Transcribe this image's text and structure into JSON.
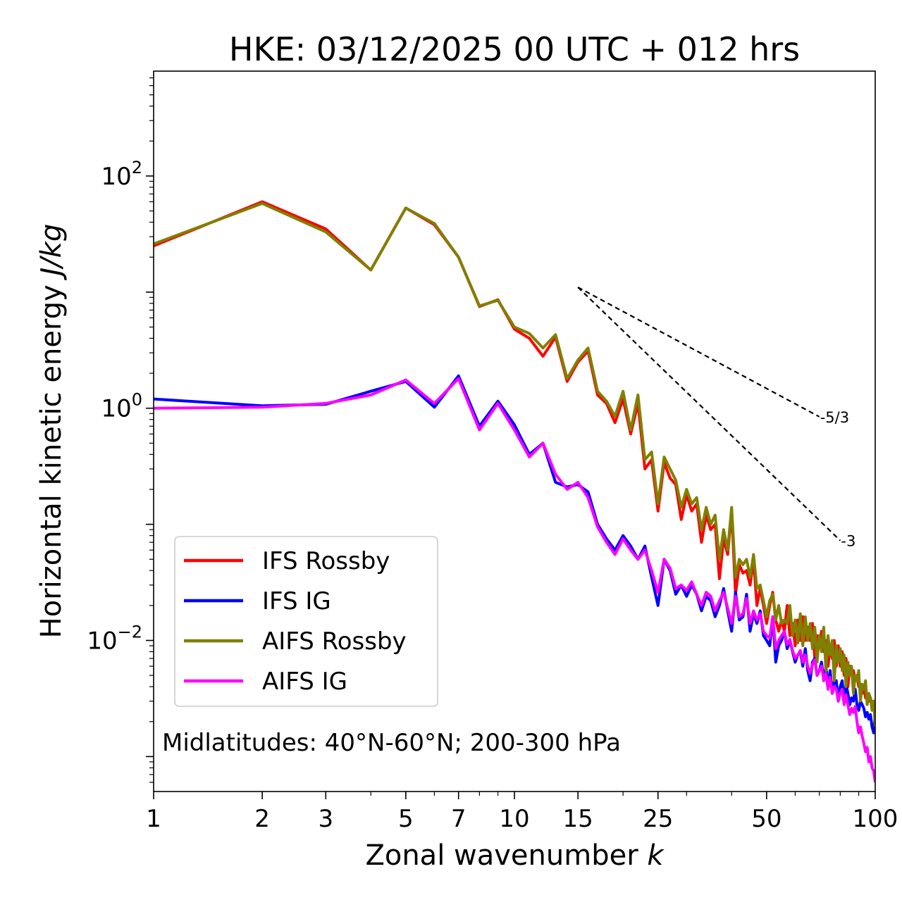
{
  "chart_data": {
    "type": "line",
    "title": "HKE: 03/12/2025 00 UTC + 012 hrs",
    "xlabel": "Zonal wavenumber",
    "xlabel_var": "k",
    "ylabel": "Horizontal kinetic energy",
    "ylabel_unit": "J/kg",
    "xscale": "log",
    "yscale": "log",
    "xlim": [
      1,
      100
    ],
    "ylim": [
      0.0005,
      800
    ],
    "x_ticks": [
      1,
      2,
      3,
      5,
      7,
      10,
      15,
      25,
      50,
      100
    ],
    "x_tick_labels": [
      "1",
      "2",
      "3",
      "5",
      "7",
      "10",
      "15",
      "25",
      "50",
      "100"
    ],
    "y_ticks": [
      0.01,
      1,
      100
    ],
    "y_tick_mantissa": [
      "10",
      "10",
      "10"
    ],
    "y_tick_exponents": [
      "−2",
      "0",
      "2"
    ],
    "annotation": "Midlatitudes: 40°N-60°N; 200-300 hPa",
    "legend_position": "lower-left",
    "reference_lines": [
      {
        "label": "-5/3",
        "slope": -1.6667,
        "x_start": 15,
        "y_start": 11,
        "x_end": 70
      },
      {
        "label": "-3",
        "slope": -3,
        "x_start": 15,
        "y_start": 11,
        "x_end": 80
      }
    ],
    "x": [
      1,
      2,
      3,
      4,
      5,
      6,
      7,
      8,
      9,
      10,
      11,
      12,
      13,
      14,
      15,
      16,
      17,
      18,
      19,
      20,
      21,
      22,
      23,
      24,
      25,
      26,
      27,
      28,
      29,
      30,
      31,
      32,
      33,
      34,
      35,
      36,
      37,
      38,
      39,
      40,
      41,
      42,
      43,
      44,
      45,
      46,
      47,
      48,
      49,
      50,
      51,
      52,
      53,
      54,
      55,
      56,
      57,
      58,
      59,
      60,
      61,
      62,
      63,
      64,
      65,
      66,
      67,
      68,
      69,
      70,
      71,
      72,
      73,
      74,
      75,
      76,
      77,
      78,
      79,
      80,
      81,
      82,
      83,
      84,
      85,
      86,
      87,
      88,
      89,
      90,
      91,
      92,
      93,
      94,
      95,
      96,
      97,
      98,
      99,
      100
    ],
    "series": [
      {
        "name": "IFS Rossby",
        "color": "#ff0000",
        "values": [
          25,
          60,
          35,
          15.5,
          53,
          38,
          20,
          7.5,
          8.6,
          4.8,
          4,
          2.8,
          4.1,
          1.7,
          2.5,
          3.1,
          1.3,
          1.1,
          0.75,
          1.2,
          0.6,
          1.1,
          0.3,
          0.36,
          0.13,
          0.34,
          0.25,
          0.22,
          0.11,
          0.18,
          0.13,
          0.15,
          0.07,
          0.12,
          0.09,
          0.1,
          0.034,
          0.075,
          0.055,
          0.13,
          0.025,
          0.045,
          0.038,
          0.04,
          0.03,
          0.05,
          0.02,
          0.028,
          0.02,
          0.014,
          0.02,
          0.026,
          0.015,
          0.012,
          0.015,
          0.012,
          0.02,
          0.011,
          0.014,
          0.009,
          0.015,
          0.01,
          0.016,
          0.01,
          0.013,
          0.01,
          0.014,
          0.007,
          0.011,
          0.009,
          0.012,
          0.008,
          0.01,
          0.006,
          0.009,
          0.007,
          0.01,
          0.006,
          0.009,
          0.006,
          0.008,
          0.005,
          0.007,
          0.004,
          0.006,
          0.005,
          0.0055,
          0.0045,
          0.005,
          0.004,
          0.0042,
          0.0035,
          0.004,
          0.0032,
          0.0035,
          0.003,
          0.0032,
          0.0028,
          0.003,
          0.0022
        ]
      },
      {
        "name": "IFS IG",
        "color": "#0000ff",
        "values": [
          1.2,
          1.05,
          1.08,
          1.4,
          1.7,
          1.02,
          1.9,
          0.7,
          1.15,
          0.72,
          0.4,
          0.5,
          0.23,
          0.21,
          0.22,
          0.19,
          0.1,
          0.075,
          0.06,
          0.08,
          0.065,
          0.05,
          0.065,
          0.035,
          0.02,
          0.05,
          0.04,
          0.025,
          0.03,
          0.024,
          0.03,
          0.025,
          0.018,
          0.024,
          0.022,
          0.016,
          0.02,
          0.028,
          0.018,
          0.012,
          0.026,
          0.015,
          0.016,
          0.025,
          0.012,
          0.017,
          0.014,
          0.018,
          0.011,
          0.01,
          0.009,
          0.016,
          0.0065,
          0.009,
          0.01,
          0.012,
          0.0085,
          0.01,
          0.008,
          0.0065,
          0.0075,
          0.008,
          0.006,
          0.0085,
          0.0055,
          0.0045,
          0.0065,
          0.007,
          0.005,
          0.0055,
          0.0065,
          0.0045,
          0.006,
          0.004,
          0.0055,
          0.0035,
          0.0045,
          0.0045,
          0.003,
          0.004,
          0.0045,
          0.003,
          0.0042,
          0.0035,
          0.0028,
          0.0032,
          0.003,
          0.0038,
          0.0028,
          0.0025,
          0.003,
          0.0028,
          0.0026,
          0.0022,
          0.0024,
          0.0021,
          0.0023,
          0.0018,
          0.0016,
          0.0023
        ]
      },
      {
        "name": "AIFS Rossby",
        "color": "#808000",
        "values": [
          26,
          58,
          33,
          15.5,
          53,
          39,
          20,
          7.6,
          8.5,
          5,
          4.4,
          3.3,
          4.3,
          1.8,
          2.6,
          3.3,
          1.4,
          1.15,
          0.85,
          1.4,
          0.65,
          1.3,
          0.36,
          0.42,
          0.15,
          0.38,
          0.3,
          0.24,
          0.14,
          0.2,
          0.15,
          0.17,
          0.09,
          0.14,
          0.1,
          0.12,
          0.05,
          0.09,
          0.06,
          0.14,
          0.035,
          0.05,
          0.045,
          0.05,
          0.035,
          0.055,
          0.028,
          0.03,
          0.022,
          0.016,
          0.022,
          0.025,
          0.015,
          0.02,
          0.014,
          0.015,
          0.014,
          0.02,
          0.011,
          0.015,
          0.0095,
          0.017,
          0.009,
          0.016,
          0.01,
          0.014,
          0.0085,
          0.013,
          0.0065,
          0.011,
          0.008,
          0.013,
          0.0055,
          0.011,
          0.0075,
          0.01,
          0.0045,
          0.009,
          0.0065,
          0.0085,
          0.0055,
          0.0075,
          0.004,
          0.0065,
          0.005,
          0.006,
          0.0035,
          0.005,
          0.0045,
          0.0055,
          0.003,
          0.0042,
          0.0038,
          0.0045,
          0.0028,
          0.0035,
          0.0032,
          0.0025,
          0.003,
          0.0018
        ]
      },
      {
        "name": "AIFS IG",
        "color": "#ff00ff",
        "values": [
          1.0,
          1.02,
          1.1,
          1.3,
          1.75,
          1.1,
          1.8,
          0.65,
          1.1,
          0.65,
          0.38,
          0.5,
          0.27,
          0.2,
          0.23,
          0.17,
          0.095,
          0.07,
          0.055,
          0.075,
          0.06,
          0.05,
          0.06,
          0.04,
          0.026,
          0.05,
          0.042,
          0.028,
          0.03,
          0.027,
          0.032,
          0.025,
          0.02,
          0.026,
          0.024,
          0.018,
          0.022,
          0.026,
          0.019,
          0.014,
          0.024,
          0.016,
          0.017,
          0.023,
          0.014,
          0.018,
          0.015,
          0.017,
          0.012,
          0.011,
          0.0105,
          0.016,
          0.0085,
          0.01,
          0.011,
          0.012,
          0.0092,
          0.0102,
          0.0082,
          0.007,
          0.0075,
          0.0082,
          0.0065,
          0.0075,
          0.006,
          0.0052,
          0.0062,
          0.0068,
          0.005,
          0.0055,
          0.006,
          0.0045,
          0.0052,
          0.0038,
          0.0048,
          0.0035,
          0.004,
          0.0038,
          0.003,
          0.0035,
          0.0038,
          0.0028,
          0.0034,
          0.0028,
          0.0023,
          0.0026,
          0.0024,
          0.0027,
          0.002,
          0.0016,
          0.0018,
          0.0015,
          0.0013,
          0.0011,
          0.0012,
          0.0009,
          0.001,
          0.0008,
          0.00075,
          0.0006
        ]
      }
    ]
  }
}
